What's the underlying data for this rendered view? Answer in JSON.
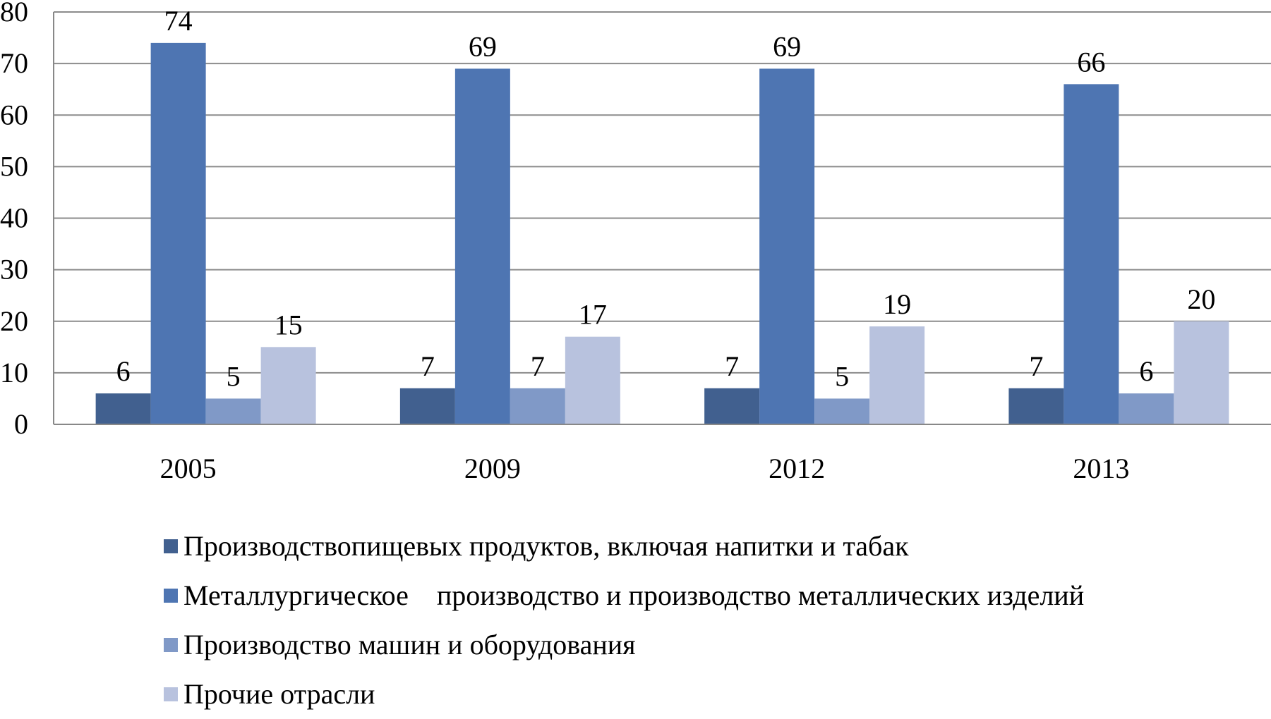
{
  "chart_data": {
    "type": "bar",
    "categories": [
      "2005",
      "2009",
      "2012",
      "2013"
    ],
    "series": [
      {
        "name": "Производствопищевых продуктов, включая напитки и табак",
        "values": [
          6,
          7,
          7,
          7
        ],
        "color": "#41608f"
      },
      {
        "name": "Металлургическое    производство и производство металлических изделий",
        "values": [
          74,
          69,
          69,
          66
        ],
        "color": "#4e75b2"
      },
      {
        "name": "Производство машин и оборудования",
        "values": [
          5,
          7,
          5,
          6
        ],
        "color": "#8099c7"
      },
      {
        "name": "Прочие отрасли",
        "values": [
          15,
          17,
          19,
          20
        ],
        "color": "#b8c2de"
      }
    ],
    "yticks": [
      "0",
      "10",
      "20",
      "30",
      "40",
      "50",
      "60",
      "70",
      "80"
    ],
    "ylim": [
      0,
      80
    ],
    "grid": true,
    "legend_position": "bottom",
    "title": "",
    "xlabel": "",
    "ylabel": ""
  }
}
